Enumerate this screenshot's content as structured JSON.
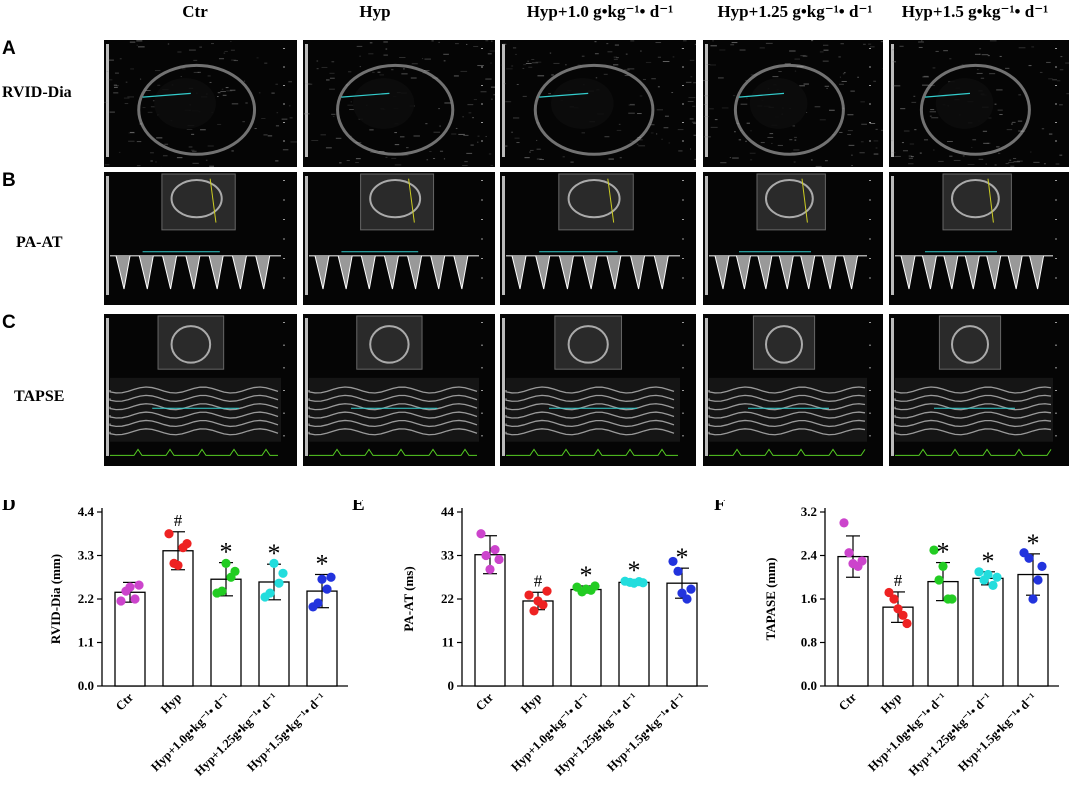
{
  "columns": [
    "Ctr",
    "Hyp",
    "Hyp+1.0 g•kg⁻¹• d⁻¹",
    "Hyp+1.25 g•kg⁻¹• d⁻¹",
    "Hyp+1.5 g•kg⁻¹• d⁻¹"
  ],
  "image_rows": [
    {
      "letter": "A",
      "label": "RVID-Dia"
    },
    {
      "letter": "B",
      "label": "PA-AT"
    },
    {
      "letter": "C",
      "label": "TAPSE"
    }
  ],
  "colors": {
    "Ctr": "#cc44cc",
    "Hyp": "#ee2222",
    "Hyp1.0": "#22cc22",
    "Hyp1.25": "#22dddd",
    "Hyp1.5": "#2233dd",
    "measure": "#33cccc",
    "ecg": "#55cc22"
  },
  "chart_data": [
    {
      "type": "bar",
      "panel": "D",
      "ylabel": "RVID-Dia (mm)",
      "ylim": [
        0.0,
        4.4
      ],
      "yticks": [
        "0.0",
        "1.1",
        "2.2",
        "3.3",
        "4.4"
      ],
      "categories": [
        "Ctr",
        "Hyp",
        "Hyp+1.0g•kg⁻¹• d⁻¹",
        "Hyp+1.25g•kg⁻¹• d⁻¹",
        "Hyp+1.5g•kg⁻¹• d⁻¹"
      ],
      "values": [
        2.37,
        3.42,
        2.7,
        2.63,
        2.4
      ],
      "errors": [
        0.25,
        0.48,
        0.42,
        0.45,
        0.42
      ],
      "points": [
        [
          2.15,
          2.4,
          2.5,
          2.2,
          2.55
        ],
        [
          3.85,
          3.1,
          3.05,
          3.5,
          3.6
        ],
        [
          2.35,
          2.4,
          3.1,
          2.75,
          2.9
        ],
        [
          2.25,
          2.35,
          3.1,
          2.6,
          2.85
        ],
        [
          2.0,
          2.1,
          2.7,
          2.45,
          2.75
        ]
      ],
      "marks": [
        "",
        "#",
        "*",
        "*",
        "*"
      ]
    },
    {
      "type": "bar",
      "panel": "E",
      "ylabel": "PA-AT (ms)",
      "ylim": [
        0,
        44
      ],
      "yticks": [
        "0",
        "11",
        "22",
        "33",
        "44"
      ],
      "categories": [
        "Ctr",
        "Hyp",
        "Hyp+1.0g•kg⁻¹• d⁻¹",
        "Hyp+1.25g•kg⁻¹• d⁻¹",
        "Hyp+1.5g•kg⁻¹• d⁻¹"
      ],
      "values": [
        33.2,
        21.5,
        24.4,
        26.2,
        26.0
      ],
      "errors": [
        4.8,
        2.2,
        0.9,
        0.3,
        3.8
      ],
      "points": [
        [
          38.5,
          33.0,
          29.5,
          34.5,
          32.0
        ],
        [
          23.0,
          19.0,
          21.5,
          20.5,
          24.0
        ],
        [
          25.0,
          23.8,
          24.5,
          24.2,
          25.3
        ],
        [
          26.5,
          26.2,
          26.0,
          26.4,
          26.1
        ],
        [
          31.5,
          29.0,
          23.5,
          22.0,
          24.5
        ]
      ],
      "marks": [
        "",
        "#",
        "*",
        "*",
        "*"
      ]
    },
    {
      "type": "bar",
      "panel": "F",
      "ylabel": "TAPASE (mm)",
      "ylim": [
        0.0,
        3.2
      ],
      "yticks": [
        "0.0",
        "0.8",
        "1.6",
        "2.4",
        "3.2"
      ],
      "categories": [
        "Ctr",
        "Hyp",
        "Hyp+1.0g•kg⁻¹• d⁻¹",
        "Hyp+1.25g•kg⁻¹• d⁻¹",
        "Hyp+1.5g•kg⁻¹• d⁻¹"
      ],
      "values": [
        2.38,
        1.45,
        1.92,
        1.98,
        2.05
      ],
      "errors": [
        0.38,
        0.28,
        0.35,
        0.12,
        0.38
      ],
      "points": [
        [
          3.0,
          2.45,
          2.25,
          2.2,
          2.3
        ],
        [
          1.72,
          1.6,
          1.42,
          1.3,
          1.15
        ],
        [
          2.5,
          1.95,
          2.2,
          1.6,
          1.6
        ],
        [
          2.1,
          1.95,
          2.05,
          1.85,
          2.0
        ],
        [
          2.45,
          2.35,
          1.6,
          1.95,
          2.2
        ]
      ],
      "marks": [
        "",
        "#",
        "*",
        "*",
        "*"
      ]
    }
  ],
  "chart_letters": [
    "D",
    "E",
    "F"
  ]
}
